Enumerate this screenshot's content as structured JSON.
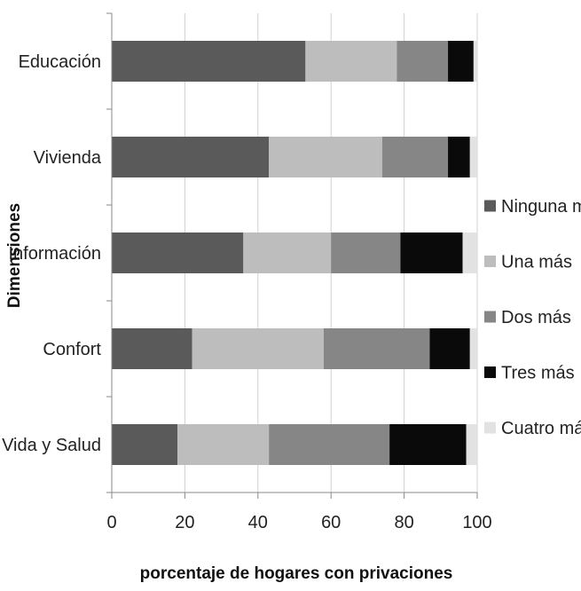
{
  "chart_data": {
    "type": "bar",
    "orientation": "horizontal",
    "stacked": true,
    "title": "",
    "xlabel": "porcentaje de hogares con privaciones",
    "ylabel": "Dimensiones",
    "xlim": [
      0,
      100
    ],
    "xticks": [
      "0",
      "20",
      "40",
      "60",
      "80",
      "100"
    ],
    "grid": true,
    "legend_position": "right",
    "categories": [
      "Educación",
      "Vivienda",
      "Información",
      "Confort",
      "Vida y Salud"
    ],
    "series": [
      {
        "name": "Ninguna más",
        "color": "#5a5a5a",
        "values": [
          53,
          43,
          36,
          22,
          18
        ]
      },
      {
        "name": "Una más",
        "color": "#bdbdbd",
        "values": [
          25,
          31,
          24,
          36,
          25
        ]
      },
      {
        "name": "Dos más",
        "color": "#868686",
        "values": [
          14,
          18,
          19,
          29,
          33
        ]
      },
      {
        "name": "Tres más",
        "color": "#0a0a0a",
        "values": [
          7,
          6,
          17,
          11,
          21
        ]
      },
      {
        "name": "Cuatro más",
        "color": "#e2e2e2",
        "values": [
          1,
          2,
          4,
          2,
          3
        ]
      }
    ]
  }
}
